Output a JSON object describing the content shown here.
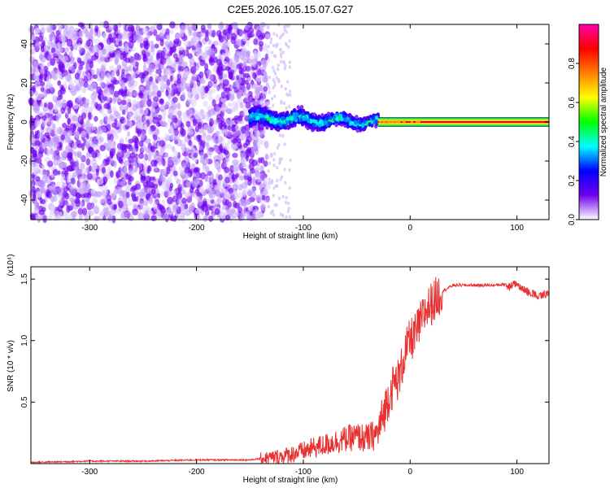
{
  "page": {
    "title": "C2E5.2026.105.15.07.G27"
  },
  "chart_data": [
    {
      "type": "heatmap",
      "xlabel": "Height of straight line (km)",
      "ylabel": "Frequency (Hz)",
      "xlim": [
        -355,
        130
      ],
      "ylim": [
        -50,
        50
      ],
      "xticks": [
        -300,
        -200,
        -100,
        0,
        100
      ],
      "yticks": [
        -40,
        -20,
        0,
        20,
        40
      ],
      "grid": false,
      "colorbar": {
        "label": "Normalized spectral amplitude",
        "range": [
          0,
          1
        ],
        "ticks": [
          0.0,
          0.2,
          0.4,
          0.6,
          0.8
        ],
        "colors": [
          "#ffffff",
          "#7000f0",
          "#0000ff",
          "#00ffff",
          "#00ff00",
          "#ffff00",
          "#ff8000",
          "#ff0000",
          "#ff00aa"
        ]
      },
      "regions": [
        {
          "name": "noise",
          "x_range": [
            -355,
            -133
          ],
          "freq_range": [
            -50,
            50
          ],
          "amplitude": [
            0.0,
            0.1
          ]
        },
        {
          "name": "transition",
          "x_range": [
            -133,
            -112
          ],
          "freq_range": [
            -50,
            50
          ],
          "amplitude": [
            0.0,
            0.05
          ]
        },
        {
          "name": "signal-broad",
          "x_range": [
            -150,
            -30
          ],
          "freq_center": [
            2,
            0
          ],
          "freq_halfwidth": [
            7,
            4
          ],
          "amplitude": [
            0.1,
            0.5
          ]
        },
        {
          "name": "signal-narrow",
          "x_range": [
            -30,
            130
          ],
          "freq_center": 0,
          "freq_halfwidth": 1,
          "amplitude": [
            0.7,
            1.0
          ]
        }
      ]
    },
    {
      "type": "line",
      "xlabel": "Height of straight line (km)",
      "ylabel": "SNR (10 * v/v)",
      "yscale_label": "(x10⁴)",
      "xlim": [
        -355,
        130
      ],
      "ylim": [
        0,
        1.6
      ],
      "xticks": [
        -300,
        -200,
        -100,
        0,
        100
      ],
      "yticks": [
        0.5,
        1.0,
        1.5
      ],
      "grid": false,
      "series": [
        {
          "color": "#e83030",
          "x": [
            -355,
            -300,
            -250,
            -200,
            -150,
            -130,
            -120,
            -110,
            -100,
            -90,
            -80,
            -70,
            -60,
            -50,
            -40,
            -30,
            -25,
            -20,
            -15,
            -10,
            -5,
            0,
            5,
            10,
            15,
            20,
            25,
            30,
            40,
            50,
            60,
            70,
            80,
            90,
            100,
            110,
            120,
            130
          ],
          "y": [
            0.01,
            0.02,
            0.02,
            0.03,
            0.03,
            0.05,
            0.06,
            0.08,
            0.1,
            0.13,
            0.15,
            0.18,
            0.2,
            0.22,
            0.2,
            0.25,
            0.4,
            0.55,
            0.65,
            0.7,
            0.9,
            1.0,
            1.05,
            1.15,
            1.25,
            1.3,
            1.35,
            1.4,
            1.45,
            1.45,
            1.45,
            1.45,
            1.45,
            1.46,
            1.5,
            1.43,
            1.4,
            1.42
          ]
        }
      ]
    }
  ]
}
